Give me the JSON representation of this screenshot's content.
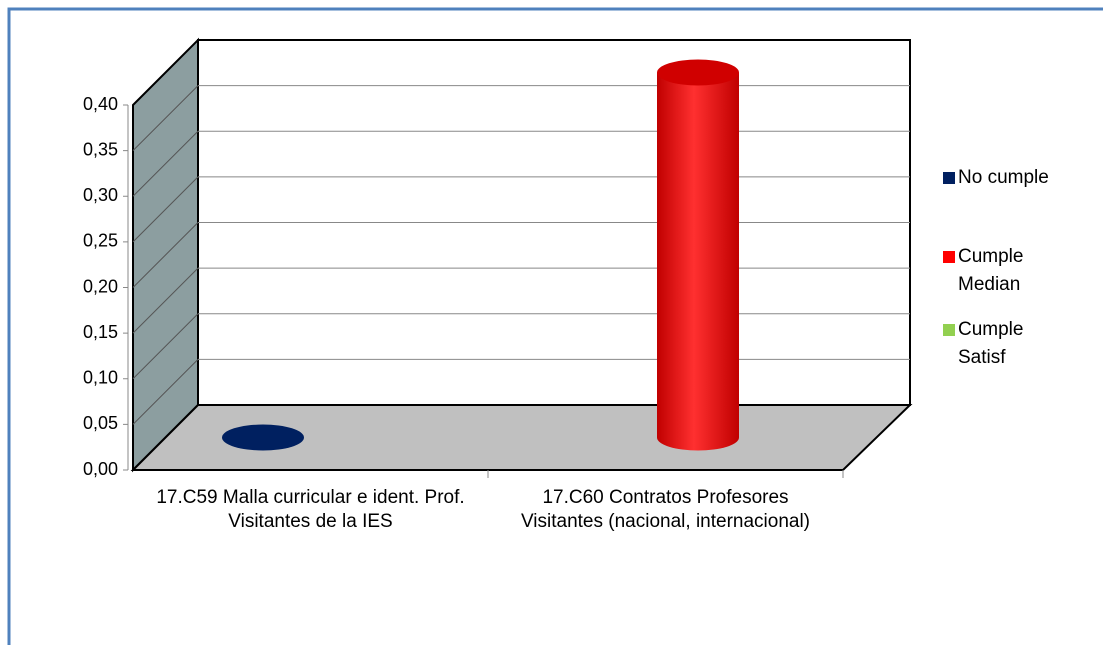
{
  "chart_data": {
    "type": "bar3d",
    "categories": [
      "17.C59 Malla curricular e ident. Prof. Visitantes de la IES",
      "17.C60 Contratos Profesores Visitantes (nacional, internacional)"
    ],
    "series": [
      {
        "name": "No cumple",
        "color": "#002060",
        "values": [
          0,
          null
        ]
      },
      {
        "name": "Cumple Median",
        "color": "#ff0000",
        "values": [
          null,
          0.4
        ]
      },
      {
        "name": "Cumple Satisf",
        "color": "#92d050",
        "values": [
          null,
          null
        ]
      }
    ],
    "ylim": [
      0,
      0.4
    ],
    "yticks": [
      {
        "value": 0,
        "label": "0,00"
      },
      {
        "value": 0.05,
        "label": "0,05"
      },
      {
        "value": 0.1,
        "label": "0,10"
      },
      {
        "value": 0.15,
        "label": "0,15"
      },
      {
        "value": 0.2,
        "label": "0,20"
      },
      {
        "value": 0.25,
        "label": "0,25"
      },
      {
        "value": 0.3,
        "label": "0,30"
      },
      {
        "value": 0.35,
        "label": "0,35"
      },
      {
        "value": 0.4,
        "label": "0,40"
      }
    ],
    "grid": true
  }
}
